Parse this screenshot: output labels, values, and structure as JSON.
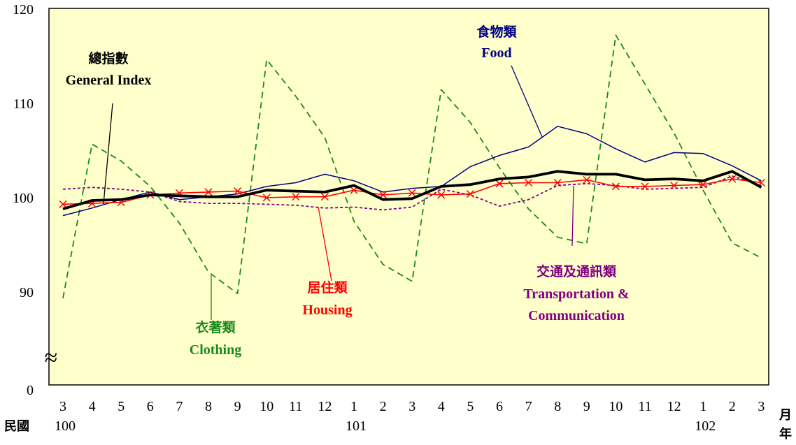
{
  "chart_data": {
    "type": "line",
    "title": "",
    "ylim": [
      85,
      120
    ],
    "y_ticks": [
      "0",
      "90",
      "100",
      "110",
      "120"
    ],
    "axis_break": "≈",
    "months": [
      "3",
      "4",
      "5",
      "6",
      "7",
      "8",
      "9",
      "10",
      "11",
      "12",
      "1",
      "2",
      "3",
      "4",
      "5",
      "6",
      "7",
      "8",
      "9",
      "10",
      "11",
      "12",
      "1",
      "2",
      "3"
    ],
    "year_labels": [
      {
        "label": "100",
        "index": 0
      },
      {
        "label": "101",
        "index": 10
      },
      {
        "label": "102",
        "index": 22
      }
    ],
    "x_axis_left_label": "民國",
    "x_axis_right_top": "月",
    "x_axis_right_bottom": "年",
    "series": [
      {
        "key": "general",
        "name_zh": "總指數",
        "name_en": "General Index",
        "color": "#000000",
        "values": [
          98.8,
          99.7,
          99.8,
          100.3,
          100.2,
          100.1,
          100.1,
          100.8,
          100.7,
          100.6,
          101.3,
          99.8,
          99.9,
          101.2,
          101.4,
          102.0,
          102.2,
          102.8,
          102.5,
          102.5,
          101.9,
          102.0,
          101.8,
          102.8,
          101.1
        ]
      },
      {
        "key": "food",
        "name_zh": "食物類",
        "name_en": "Food",
        "color": "#000080",
        "values": [
          98.1,
          98.9,
          99.8,
          100.6,
          99.8,
          100.1,
          100.4,
          101.2,
          101.6,
          102.5,
          101.8,
          100.6,
          101.0,
          101.2,
          103.3,
          104.5,
          105.4,
          107.6,
          106.8,
          105.2,
          103.8,
          104.8,
          104.7,
          103.4,
          101.8
        ]
      },
      {
        "key": "clothing",
        "name_zh": "衣著類",
        "name_en": "Clothing",
        "color": "#1a8a1a",
        "values": [
          89.3,
          105.7,
          103.9,
          101.2,
          97.3,
          92.1,
          89.8,
          114.7,
          110.8,
          106.4,
          97.5,
          92.9,
          91.1,
          111.5,
          108.0,
          103.2,
          98.8,
          95.8,
          95.1,
          117.3,
          112.1,
          106.9,
          100.8,
          95.2,
          93.6
        ]
      },
      {
        "key": "housing",
        "name_zh": "居住類",
        "name_en": "Housing",
        "color": "#ff0000",
        "values": [
          99.3,
          99.4,
          99.5,
          100.3,
          100.5,
          100.6,
          100.7,
          100.0,
          100.1,
          100.1,
          100.8,
          100.3,
          100.5,
          100.3,
          100.4,
          101.5,
          101.6,
          101.6,
          101.9,
          101.2,
          101.2,
          101.3,
          101.4,
          102.0,
          101.6
        ]
      },
      {
        "key": "transport",
        "name_zh": "交通及通訊類",
        "name_en_line1": "Transportation &",
        "name_en_line2": "Communication",
        "color": "#800080",
        "values": [
          100.9,
          101.1,
          100.9,
          100.6,
          99.6,
          99.4,
          99.4,
          99.3,
          99.2,
          98.9,
          99.0,
          98.7,
          99.0,
          100.9,
          100.3,
          99.1,
          99.8,
          101.3,
          101.5,
          101.3,
          100.9,
          101.0,
          101.1,
          102.3,
          101.3
        ]
      }
    ]
  }
}
